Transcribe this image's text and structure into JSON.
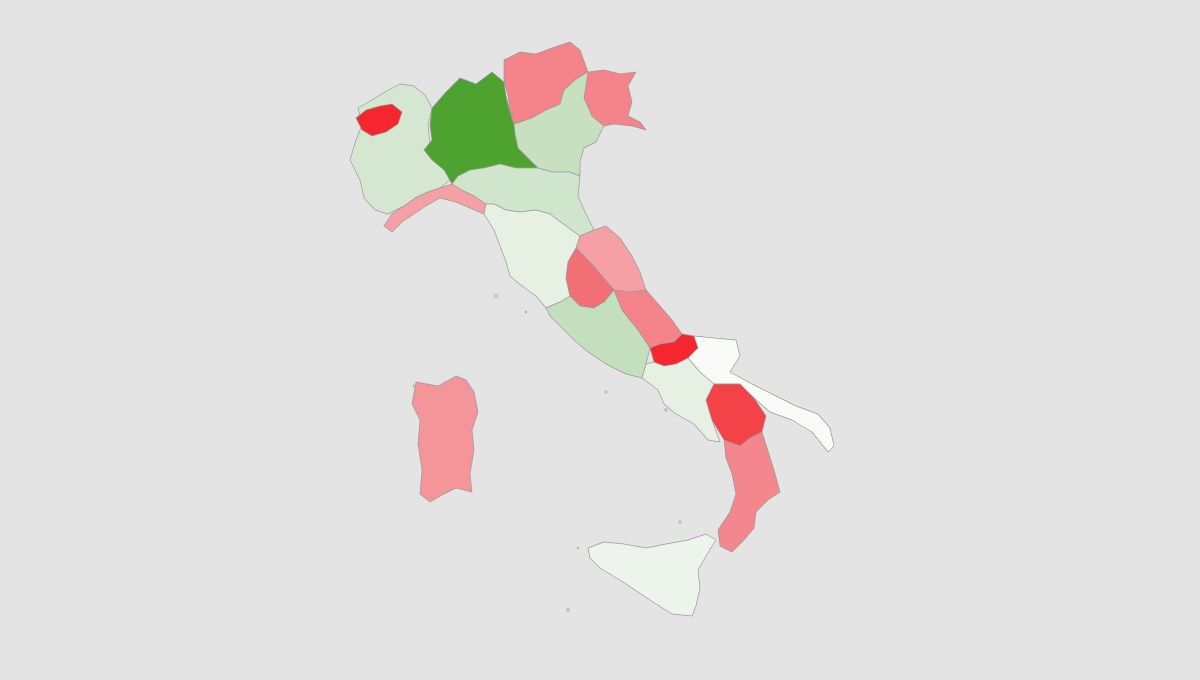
{
  "map": {
    "background": "#e4e4e4",
    "border_color": "#9a9a9a",
    "regions": [
      {
        "id": "valle-d-aosta",
        "color": "#f5262d"
      },
      {
        "id": "piemonte",
        "color": "#d5e7d1"
      },
      {
        "id": "lombardia",
        "color": "#4ea22f"
      },
      {
        "id": "trentino-alto-adige",
        "color": "#f4838a"
      },
      {
        "id": "veneto",
        "color": "#c6e0c0"
      },
      {
        "id": "friuli-venezia-giulia",
        "color": "#f4838a"
      },
      {
        "id": "liguria",
        "color": "#f5a0a4"
      },
      {
        "id": "emilia-romagna",
        "color": "#d0e6cc"
      },
      {
        "id": "toscana",
        "color": "#e6f0e3"
      },
      {
        "id": "marche",
        "color": "#f5a0a4"
      },
      {
        "id": "umbria",
        "color": "#f36f76"
      },
      {
        "id": "lazio",
        "color": "#c3dfbe"
      },
      {
        "id": "abruzzo",
        "color": "#f4838a"
      },
      {
        "id": "molise",
        "color": "#f5262d"
      },
      {
        "id": "campania",
        "color": "#e6f0e3"
      },
      {
        "id": "puglia",
        "color": "#f8fbf8"
      },
      {
        "id": "basilicata",
        "color": "#f34248"
      },
      {
        "id": "calabria",
        "color": "#f4878d"
      },
      {
        "id": "sicilia",
        "color": "#edf4eb"
      },
      {
        "id": "sardegna",
        "color": "#f4959a"
      }
    ]
  }
}
